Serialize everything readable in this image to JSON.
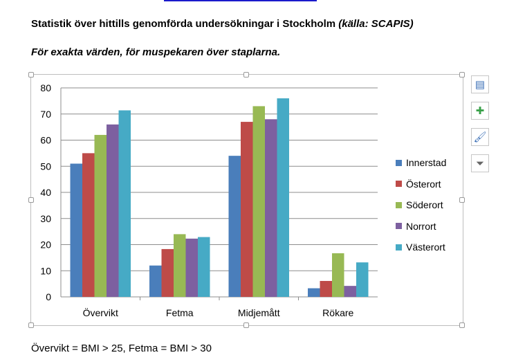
{
  "header": {
    "title_main": "Statistik över hittills genomförda undersökningar i Stockholm ",
    "title_source": "(källa: SCAPIS)",
    "subtitle": "För exakta värden, för muspekaren över staplarna."
  },
  "footer": "Övervikt = BMI > 25, Fetma = BMI > 30",
  "tools": [
    {
      "name": "chart-elements-icon",
      "glyph": "▤"
    },
    {
      "name": "plus-icon",
      "glyph": "✚"
    },
    {
      "name": "brush-icon",
      "glyph": "🖌"
    },
    {
      "name": "filter-icon",
      "glyph": "⏷"
    }
  ],
  "chart_data": {
    "type": "bar",
    "title": "",
    "xlabel": "",
    "ylabel": "",
    "categories": [
      "Övervikt",
      "Fetma",
      "Midjemått",
      "Rökare"
    ],
    "ylim": [
      0,
      80
    ],
    "yticks": [
      "0",
      "10",
      "20",
      "30",
      "40",
      "50",
      "60",
      "70",
      "80"
    ],
    "grid": true,
    "legend_position": "right",
    "series": [
      {
        "name": "Innerstad",
        "color": "#4a7ebb",
        "values": [
          51,
          12,
          54,
          3.3
        ]
      },
      {
        "name": "Österort",
        "color": "#be4b48",
        "values": [
          55,
          18.3,
          67,
          6.1
        ]
      },
      {
        "name": "Söderort",
        "color": "#98b954",
        "values": [
          62,
          24,
          73,
          16.7
        ]
      },
      {
        "name": "Norrort",
        "color": "#7d60a0",
        "values": [
          66,
          22.3,
          68,
          4.2
        ]
      },
      {
        "name": "Västerort",
        "color": "#46aac5",
        "values": [
          71.4,
          22.9,
          76,
          13.2
        ]
      }
    ]
  }
}
